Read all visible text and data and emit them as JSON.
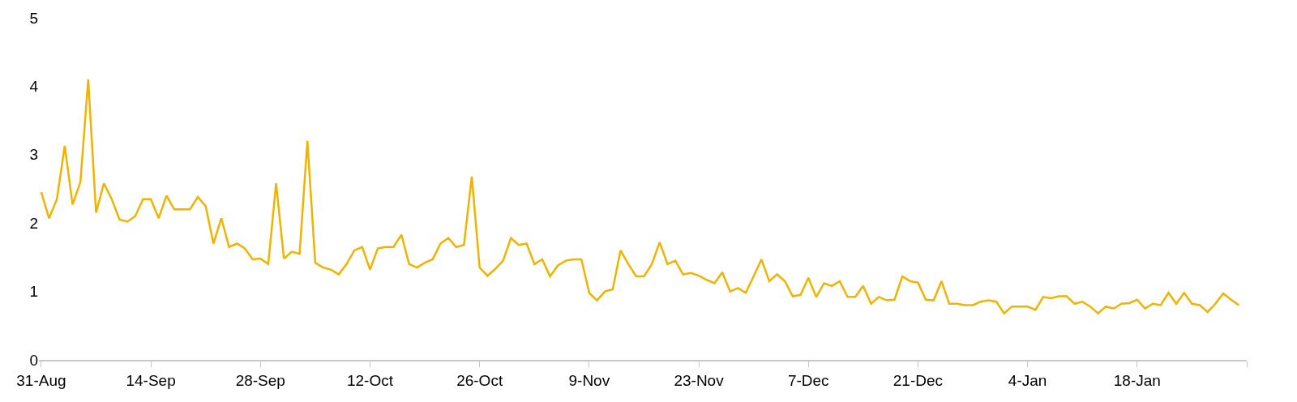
{
  "chart_data": {
    "type": "line",
    "categories": [
      "31-Aug",
      null,
      null,
      null,
      null,
      null,
      null,
      null,
      null,
      null,
      null,
      null,
      null,
      null,
      "14-Sep",
      null,
      null,
      null,
      null,
      null,
      null,
      null,
      null,
      null,
      null,
      null,
      null,
      null,
      "28-Sep",
      null,
      null,
      null,
      null,
      null,
      null,
      null,
      null,
      null,
      null,
      null,
      null,
      null,
      "12-Oct",
      null,
      null,
      null,
      null,
      null,
      null,
      null,
      null,
      null,
      null,
      null,
      null,
      null,
      "26-Oct",
      null,
      null,
      null,
      null,
      null,
      null,
      null,
      null,
      null,
      null,
      null,
      null,
      null,
      "9-Nov",
      null,
      null,
      null,
      null,
      null,
      null,
      null,
      null,
      null,
      null,
      null,
      null,
      null,
      "23-Nov",
      null,
      null,
      null,
      null,
      null,
      null,
      null,
      null,
      null,
      null,
      null,
      null,
      null,
      "7-Dec",
      null,
      null,
      null,
      null,
      null,
      null,
      null,
      null,
      null,
      null,
      null,
      null,
      null,
      "21-Dec",
      null,
      null,
      null,
      null,
      null,
      null,
      null,
      null,
      null,
      null,
      null,
      null,
      null,
      "4-Jan",
      null,
      null,
      null,
      null,
      null,
      null,
      null,
      null,
      null,
      null,
      null,
      null,
      null,
      "18-Jan",
      null,
      null,
      null,
      null,
      null,
      null,
      null,
      null,
      null,
      null,
      null,
      null,
      null
    ],
    "series": [
      {
        "color": "#f0b400",
        "values": [
          2.45,
          2.07,
          2.35,
          3.13,
          2.27,
          2.6,
          4.1,
          2.15,
          2.58,
          2.35,
          2.05,
          2.02,
          2.1,
          2.35,
          2.35,
          2.07,
          2.4,
          2.2,
          2.2,
          2.2,
          2.38,
          2.25,
          1.7,
          2.07,
          1.65,
          1.7,
          1.63,
          1.47,
          1.48,
          1.4,
          2.58,
          1.48,
          1.58,
          1.55,
          3.2,
          1.42,
          1.35,
          1.32,
          1.25,
          1.4,
          1.6,
          1.65,
          1.32,
          1.63,
          1.65,
          1.65,
          1.83,
          1.4,
          1.35,
          1.42,
          1.47,
          1.7,
          1.78,
          1.65,
          1.68,
          2.68,
          1.35,
          1.23,
          1.33,
          1.45,
          1.78,
          1.68,
          1.7,
          1.4,
          1.47,
          1.22,
          1.38,
          1.45,
          1.47,
          1.47,
          0.98,
          0.87,
          1.0,
          1.03,
          1.6,
          1.4,
          1.22,
          1.22,
          1.4,
          1.72,
          1.4,
          1.45,
          1.25,
          1.27,
          1.23,
          1.17,
          1.12,
          1.28,
          1.0,
          1.05,
          0.98,
          1.22,
          1.47,
          1.15,
          1.25,
          1.15,
          0.93,
          0.95,
          1.2,
          0.92,
          1.12,
          1.08,
          1.15,
          0.92,
          0.92,
          1.08,
          0.82,
          0.92,
          0.87,
          0.88,
          1.22,
          1.15,
          1.13,
          0.88,
          0.87,
          1.15,
          0.82,
          0.82,
          0.8,
          0.8,
          0.85,
          0.87,
          0.85,
          0.68,
          0.78,
          0.78,
          0.78,
          0.73,
          0.92,
          0.9,
          0.93,
          0.93,
          0.82,
          0.85,
          0.78,
          0.68,
          0.78,
          0.75,
          0.82,
          0.83,
          0.88,
          0.75,
          0.82,
          0.8,
          0.98,
          0.82,
          0.98,
          0.82,
          0.8,
          0.7,
          0.82,
          0.97,
          0.88,
          0.8
        ]
      }
    ],
    "ylim": [
      0,
      5
    ],
    "yticks": [
      0,
      1,
      2,
      3,
      4,
      5
    ],
    "marker": "none",
    "line_style": "solid"
  }
}
